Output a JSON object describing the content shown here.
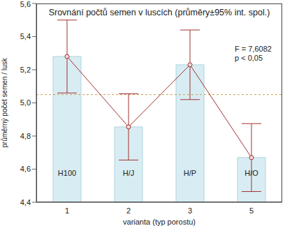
{
  "chart_data": {
    "type": "bar",
    "title": "Srovnání počtů semen v luscích (průměry±95% int. spol.)",
    "x_label": "varianta (typ porostu)",
    "y_label": "průměrný počet semen / lusk",
    "categories": [
      "1",
      "2",
      "3",
      "5"
    ],
    "bar_labels": [
      "H100",
      "H/J",
      "H/P",
      "H/O"
    ],
    "series": [
      {
        "type": "bar",
        "color": "#d8edf3",
        "values": [
          5.28,
          4.855,
          5.23,
          4.67
        ]
      },
      {
        "type": "line",
        "color": "#a3302f",
        "marker": "circle",
        "values": [
          5.28,
          4.855,
          5.23,
          4.67
        ],
        "error": [
          0.22,
          0.2,
          0.21,
          0.205
        ]
      }
    ],
    "mean_line": 5.05,
    "annotations": [
      "F = 7,6082",
      "p < 0,05"
    ],
    "ylim": [
      4.4,
      5.6
    ],
    "yticks": [
      {
        "value": 4.4,
        "label": "4,4"
      },
      {
        "value": 4.6,
        "label": "4,6"
      },
      {
        "value": 4.8,
        "label": "4,8"
      },
      {
        "value": 5.0,
        "label": "5,0"
      },
      {
        "value": 5.2,
        "label": "5,2"
      },
      {
        "value": 5.4,
        "label": "5,4"
      },
      {
        "value": 5.6,
        "label": "5,6"
      }
    ],
    "grid": false
  }
}
